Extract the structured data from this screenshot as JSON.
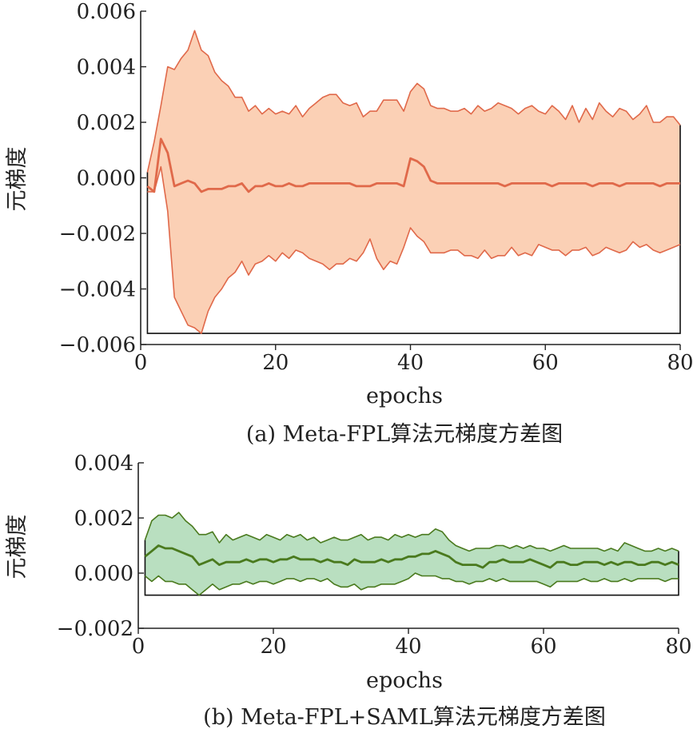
{
  "chart_data": [
    {
      "type": "area",
      "caption": "(a) Meta-FPL算法元梯度方差图",
      "xlabel": "epochs",
      "ylabel": "元梯度",
      "xlim": [
        0,
        80
      ],
      "ylim": [
        -0.006,
        0.006
      ],
      "xticks": [
        0,
        20,
        40,
        60,
        80
      ],
      "xtick_labels": [
        "0",
        "20",
        "40",
        "60",
        "80"
      ],
      "yticks": [
        -0.006,
        -0.004,
        -0.002,
        0.0,
        0.002,
        0.004,
        0.006
      ],
      "ytick_labels": [
        "−0.006",
        "−0.004",
        "−0.002",
        "0.000",
        "0.002",
        "0.004",
        "0.006"
      ],
      "grid": false,
      "colors": {
        "fill": "#fbd0b5",
        "line": "#e0694a"
      },
      "x": [
        1,
        2,
        3,
        4,
        5,
        6,
        7,
        8,
        9,
        10,
        11,
        12,
        13,
        14,
        15,
        16,
        17,
        18,
        19,
        20,
        21,
        22,
        23,
        24,
        25,
        26,
        27,
        28,
        29,
        30,
        31,
        32,
        33,
        34,
        35,
        36,
        37,
        38,
        39,
        40,
        41,
        42,
        43,
        44,
        45,
        46,
        47,
        48,
        49,
        50,
        51,
        52,
        53,
        54,
        55,
        56,
        57,
        58,
        59,
        60,
        61,
        62,
        63,
        64,
        65,
        66,
        67,
        68,
        69,
        70,
        71,
        72,
        73,
        74,
        75,
        76,
        77,
        78,
        79,
        80
      ],
      "upper": [
        0.0002,
        0.0013,
        0.0026,
        0.004,
        0.0039,
        0.0043,
        0.0046,
        0.0053,
        0.0046,
        0.0044,
        0.0038,
        0.0035,
        0.0033,
        0.0029,
        0.0029,
        0.0024,
        0.0026,
        0.0023,
        0.0025,
        0.0023,
        0.0024,
        0.0023,
        0.0026,
        0.0022,
        0.0025,
        0.0027,
        0.0029,
        0.003,
        0.003,
        0.0027,
        0.0026,
        0.0027,
        0.0022,
        0.0024,
        0.0024,
        0.0028,
        0.0028,
        0.0028,
        0.0024,
        0.0031,
        0.0034,
        0.0032,
        0.0026,
        0.0025,
        0.0025,
        0.0024,
        0.0024,
        0.0025,
        0.0023,
        0.0026,
        0.0024,
        0.0025,
        0.0027,
        0.0026,
        0.0025,
        0.0023,
        0.0025,
        0.0026,
        0.0024,
        0.0023,
        0.0026,
        0.0024,
        0.0021,
        0.0026,
        0.002,
        0.0025,
        0.0021,
        0.0027,
        0.0024,
        0.0022,
        0.0025,
        0.0024,
        0.0021,
        0.0023,
        0.0026,
        0.002,
        0.002,
        0.0022,
        0.0022,
        0.0019
      ],
      "mean": [
        -0.0003,
        -0.0005,
        0.0014,
        0.0009,
        -0.0003,
        -0.0002,
        -0.0001,
        -0.0002,
        -0.0005,
        -0.0004,
        -0.0004,
        -0.0004,
        -0.0003,
        -0.0003,
        -0.0002,
        -0.0005,
        -0.0003,
        -0.0003,
        -0.0002,
        -0.0003,
        -0.0003,
        -0.0002,
        -0.0003,
        -0.0003,
        -0.0002,
        -0.0002,
        -0.0002,
        -0.0002,
        -0.0002,
        -0.0002,
        -0.0002,
        -0.0003,
        -0.0003,
        -0.0003,
        -0.0002,
        -0.0002,
        -0.0002,
        -0.0002,
        -0.0003,
        0.0007,
        0.0006,
        0.0004,
        -0.0001,
        -0.0002,
        -0.0002,
        -0.0002,
        -0.0002,
        -0.0002,
        -0.0002,
        -0.0002,
        -0.0002,
        -0.0002,
        -0.0002,
        -0.0003,
        -0.0002,
        -0.0002,
        -0.0002,
        -0.0002,
        -0.0002,
        -0.0002,
        -0.0003,
        -0.0002,
        -0.0002,
        -0.0002,
        -0.0002,
        -0.0002,
        -0.0003,
        -0.0002,
        -0.0002,
        -0.0002,
        -0.0003,
        -0.0002,
        -0.0002,
        -0.0002,
        -0.0002,
        -0.0002,
        -0.0003,
        -0.0002,
        -0.0002,
        -0.0002
      ],
      "lower": [
        -0.0005,
        -0.0005,
        0.0004,
        -0.0012,
        -0.0043,
        -0.0048,
        -0.0053,
        -0.0054,
        -0.0056,
        -0.0048,
        -0.0043,
        -0.004,
        -0.0036,
        -0.0034,
        -0.003,
        -0.0035,
        -0.0031,
        -0.003,
        -0.0028,
        -0.003,
        -0.0027,
        -0.0029,
        -0.0026,
        -0.0027,
        -0.0029,
        -0.003,
        -0.0031,
        -0.0033,
        -0.0031,
        -0.0031,
        -0.0029,
        -0.003,
        -0.0027,
        -0.0022,
        -0.0029,
        -0.0033,
        -0.003,
        -0.0031,
        -0.0025,
        -0.0018,
        -0.0021,
        -0.0023,
        -0.0027,
        -0.0027,
        -0.0027,
        -0.0026,
        -0.0026,
        -0.0028,
        -0.0028,
        -0.0029,
        -0.0026,
        -0.0029,
        -0.0028,
        -0.0028,
        -0.0025,
        -0.0028,
        -0.0027,
        -0.0028,
        -0.0024,
        -0.0025,
        -0.0026,
        -0.0026,
        -0.0028,
        -0.0026,
        -0.0026,
        -0.0025,
        -0.0028,
        -0.0027,
        -0.0025,
        -0.0026,
        -0.0027,
        -0.0026,
        -0.0023,
        -0.0025,
        -0.0024,
        -0.0026,
        -0.0027,
        -0.0026,
        -0.0025,
        -0.0024
      ]
    },
    {
      "type": "area",
      "caption": "(b) Meta-FPL+SAML算法元梯度方差图",
      "xlabel": "epochs",
      "ylabel": "元梯度",
      "xlim": [
        0,
        80
      ],
      "ylim": [
        -0.002,
        0.004
      ],
      "xticks": [
        0,
        20,
        40,
        60,
        80
      ],
      "xtick_labels": [
        "0",
        "20",
        "40",
        "60",
        "80"
      ],
      "yticks": [
        -0.002,
        0.0,
        0.002,
        0.004
      ],
      "ytick_labels": [
        "−0.002",
        "0.000",
        "0.002",
        "0.004"
      ],
      "grid": false,
      "colors": {
        "fill": "#b9dfc0",
        "line": "#4a7a1e"
      },
      "x": [
        1,
        2,
        3,
        4,
        5,
        6,
        7,
        8,
        9,
        10,
        11,
        12,
        13,
        14,
        15,
        16,
        17,
        18,
        19,
        20,
        21,
        22,
        23,
        24,
        25,
        26,
        27,
        28,
        29,
        30,
        31,
        32,
        33,
        34,
        35,
        36,
        37,
        38,
        39,
        40,
        41,
        42,
        43,
        44,
        45,
        46,
        47,
        48,
        49,
        50,
        51,
        52,
        53,
        54,
        55,
        56,
        57,
        58,
        59,
        60,
        61,
        62,
        63,
        64,
        65,
        66,
        67,
        68,
        69,
        70,
        71,
        72,
        73,
        74,
        75,
        76,
        77,
        78,
        79,
        80
      ],
      "upper": [
        0.0012,
        0.0019,
        0.0021,
        0.0021,
        0.002,
        0.0022,
        0.0019,
        0.0017,
        0.0014,
        0.0014,
        0.0015,
        0.0011,
        0.0014,
        0.0012,
        0.0013,
        0.0014,
        0.0013,
        0.0012,
        0.0014,
        0.0013,
        0.0012,
        0.0014,
        0.0013,
        0.0014,
        0.0012,
        0.0013,
        0.0011,
        0.0012,
        0.0013,
        0.0012,
        0.0012,
        0.0013,
        0.0014,
        0.0012,
        0.0013,
        0.0013,
        0.0012,
        0.0014,
        0.0013,
        0.0014,
        0.0013,
        0.0014,
        0.0014,
        0.0016,
        0.0015,
        0.0012,
        0.001,
        0.0009,
        0.0008,
        0.0009,
        0.0009,
        0.0009,
        0.001,
        0.001,
        0.0009,
        0.001,
        0.0009,
        0.001,
        0.0009,
        0.0009,
        0.0008,
        0.0009,
        0.001,
        0.0009,
        0.0009,
        0.0009,
        0.0009,
        0.0009,
        0.0008,
        0.0009,
        0.0008,
        0.0011,
        0.001,
        0.0009,
        0.0008,
        0.0008,
        0.0009,
        0.0008,
        0.0009,
        0.0008
      ],
      "mean": [
        0.0006,
        0.0008,
        0.001,
        0.0009,
        0.0009,
        0.0008,
        0.0007,
        0.0006,
        0.0003,
        0.0004,
        0.0005,
        0.0003,
        0.0004,
        0.0004,
        0.0004,
        0.0005,
        0.0004,
        0.0005,
        0.0005,
        0.0004,
        0.0005,
        0.0005,
        0.0006,
        0.0005,
        0.0005,
        0.0005,
        0.0004,
        0.0005,
        0.0004,
        0.0004,
        0.0003,
        0.0005,
        0.0004,
        0.0004,
        0.0004,
        0.0005,
        0.0004,
        0.0005,
        0.0005,
        0.0006,
        0.0006,
        0.0007,
        0.0007,
        0.0008,
        0.0007,
        0.0006,
        0.0004,
        0.0003,
        0.0003,
        0.0003,
        0.0002,
        0.0004,
        0.0004,
        0.0005,
        0.0004,
        0.0004,
        0.0004,
        0.0005,
        0.0004,
        0.0003,
        0.0002,
        0.0004,
        0.0004,
        0.0003,
        0.0003,
        0.0004,
        0.0004,
        0.0004,
        0.0003,
        0.0004,
        0.0003,
        0.0004,
        0.0004,
        0.0003,
        0.0003,
        0.0004,
        0.0004,
        0.0003,
        0.0004,
        0.0003
      ],
      "lower": [
        -0.0001,
        -0.0003,
        -0.0001,
        -0.0003,
        -0.0003,
        -0.0004,
        -0.0004,
        -0.0006,
        -0.0008,
        -0.0006,
        -0.0004,
        -0.0006,
        -0.0005,
        -0.0004,
        -0.0004,
        -0.0003,
        -0.0004,
        -0.0003,
        -0.0003,
        -0.0004,
        -0.0003,
        -0.0002,
        -0.0002,
        -0.0003,
        -0.0002,
        -0.0002,
        -0.0003,
        -0.0002,
        -0.0004,
        -0.0005,
        -0.0005,
        -0.0004,
        -0.0006,
        -0.0005,
        -0.0005,
        -0.0004,
        -0.0004,
        -0.0004,
        -0.0003,
        -0.0002,
        0.0,
        -0.0001,
        -0.0001,
        -0.0001,
        -0.0002,
        -0.0002,
        -0.0003,
        -0.0003,
        -0.0004,
        -0.0003,
        -0.0003,
        -0.0002,
        -0.0003,
        -0.0002,
        -0.0003,
        -0.0003,
        -0.0003,
        -0.0003,
        -0.0003,
        -0.0004,
        -0.0005,
        -0.0003,
        -0.0003,
        -0.0003,
        -0.0003,
        -0.0002,
        -0.0003,
        -0.0003,
        -0.0002,
        -0.0003,
        -0.0003,
        -0.0002,
        -0.0003,
        -0.0002,
        -0.0002,
        -0.0002,
        -0.0002,
        -0.0003,
        -0.0002,
        -0.0002
      ]
    }
  ]
}
